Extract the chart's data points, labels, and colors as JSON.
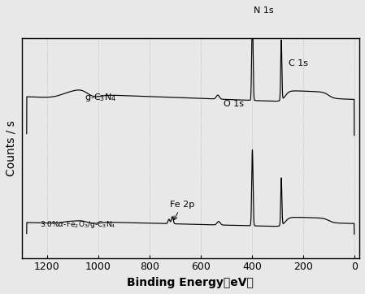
{
  "xlabel": "Binding Energy（eV）",
  "ylabel": "Counts / s",
  "background_color": "#e8e8e8",
  "line_color": "#000000",
  "axis_fontsize": 10,
  "tick_fontsize": 9,
  "label_fontsize": 8,
  "grid_color": "#aaaaaa",
  "xticks": [
    1200,
    1000,
    800,
    600,
    400,
    200,
    0
  ],
  "xlim_left": 1300,
  "xlim_right": -20
}
